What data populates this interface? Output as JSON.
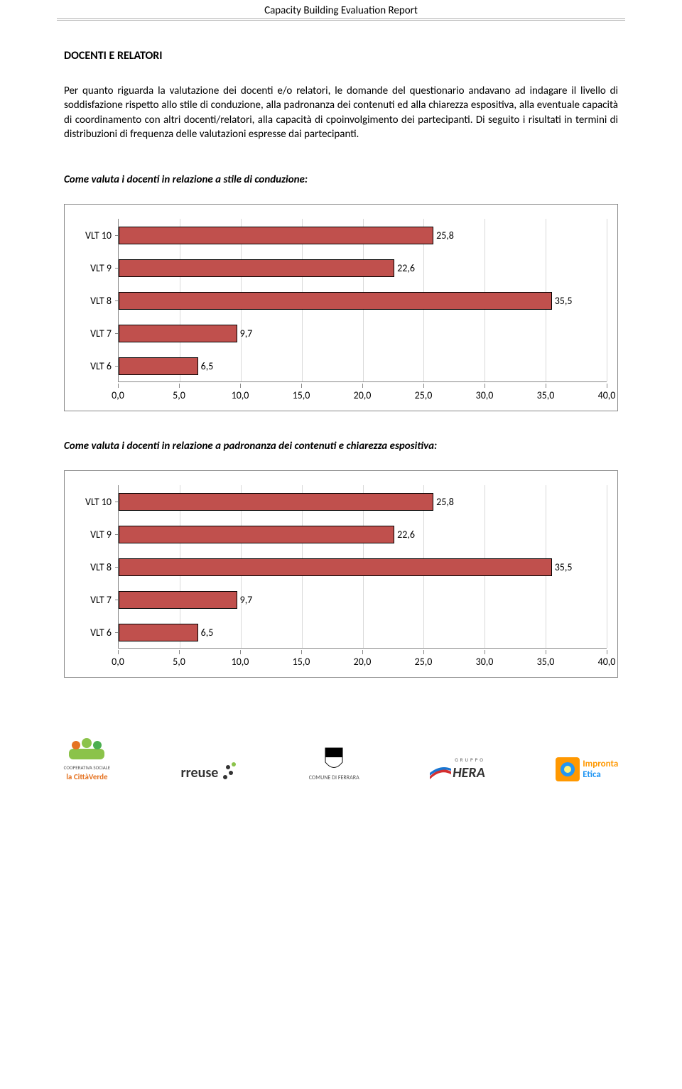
{
  "header": {
    "title": "Capacity Building Evaluation Report"
  },
  "section": {
    "heading": "DOCENTI E RELATORI",
    "paragraph": "Per quanto riguarda la valutazione dei docenti e/o relatori, le domande del questionario andavano ad indagare il livello di soddisfazione rispetto allo stile di conduzione, alla padronanza dei contenuti ed alla chiarezza espositiva, alla eventuale capacità di coordinamento con altri docenti/relatori, alla capacità di cpoinvolgimento dei partecipanti. Di seguito i risultati in termini di distribuzioni di frequenza delle valutazioni espresse dai partecipanti."
  },
  "chart1": {
    "title": "Come valuta i docenti in relazione a stile di conduzione:",
    "type": "bar-horizontal",
    "categories": [
      "VLT 10",
      "VLT 9",
      "VLT 8",
      "VLT 7",
      "VLT 6"
    ],
    "values": [
      25.8,
      22.6,
      35.5,
      9.7,
      6.5
    ],
    "value_labels": [
      "25,8",
      "22,6",
      "35,5",
      "9,7",
      "6,5"
    ],
    "bar_color": "#c0504d",
    "bar_border": "#000000",
    "xmin": 0,
    "xmax": 40,
    "xtick_step": 5,
    "xtick_labels": [
      "0,0",
      "5,0",
      "10,0",
      "15,0",
      "20,0",
      "25,0",
      "30,0",
      "35,0",
      "40,0"
    ],
    "grid_color": "#d9d9d9",
    "axis_color": "#888888",
    "label_fontsize": 14
  },
  "chart2": {
    "title": "Come valuta i docenti in relazione a padronanza dei contenuti e chiarezza espositiva:",
    "type": "bar-horizontal",
    "categories": [
      "VLT 10",
      "VLT 9",
      "VLT 8",
      "VLT 7",
      "VLT 6"
    ],
    "values": [
      25.8,
      22.6,
      35.5,
      9.7,
      6.5
    ],
    "value_labels": [
      "25,8",
      "22,6",
      "35,5",
      "9,7",
      "6,5"
    ],
    "bar_color": "#c0504d",
    "bar_border": "#000000",
    "xmin": 0,
    "xmax": 40,
    "xtick_step": 5,
    "xtick_labels": [
      "0,0",
      "5,0",
      "10,0",
      "15,0",
      "20,0",
      "25,0",
      "30,0",
      "35,0",
      "40,0"
    ],
    "grid_color": "#d9d9d9",
    "axis_color": "#888888",
    "label_fontsize": 14
  },
  "footer_logos": [
    {
      "name": "la CittàVerde",
      "sub": "COOPERATIVA SOCIALE",
      "color1": "#8bc34a",
      "color2": "#e57322"
    },
    {
      "name": "rreuse",
      "color1": "#333",
      "color2": "#8bc34a"
    },
    {
      "name": "COMUNE DI FERRARA",
      "color1": "#000",
      "color2": "#f4d03f"
    },
    {
      "name": "HERA",
      "sub": "GRUPPO",
      "color1": "#d32f2f",
      "color2": "#1976d2"
    },
    {
      "name": "Impronta Etica",
      "color1": "#ff9800",
      "color2": "#2196f3"
    }
  ]
}
